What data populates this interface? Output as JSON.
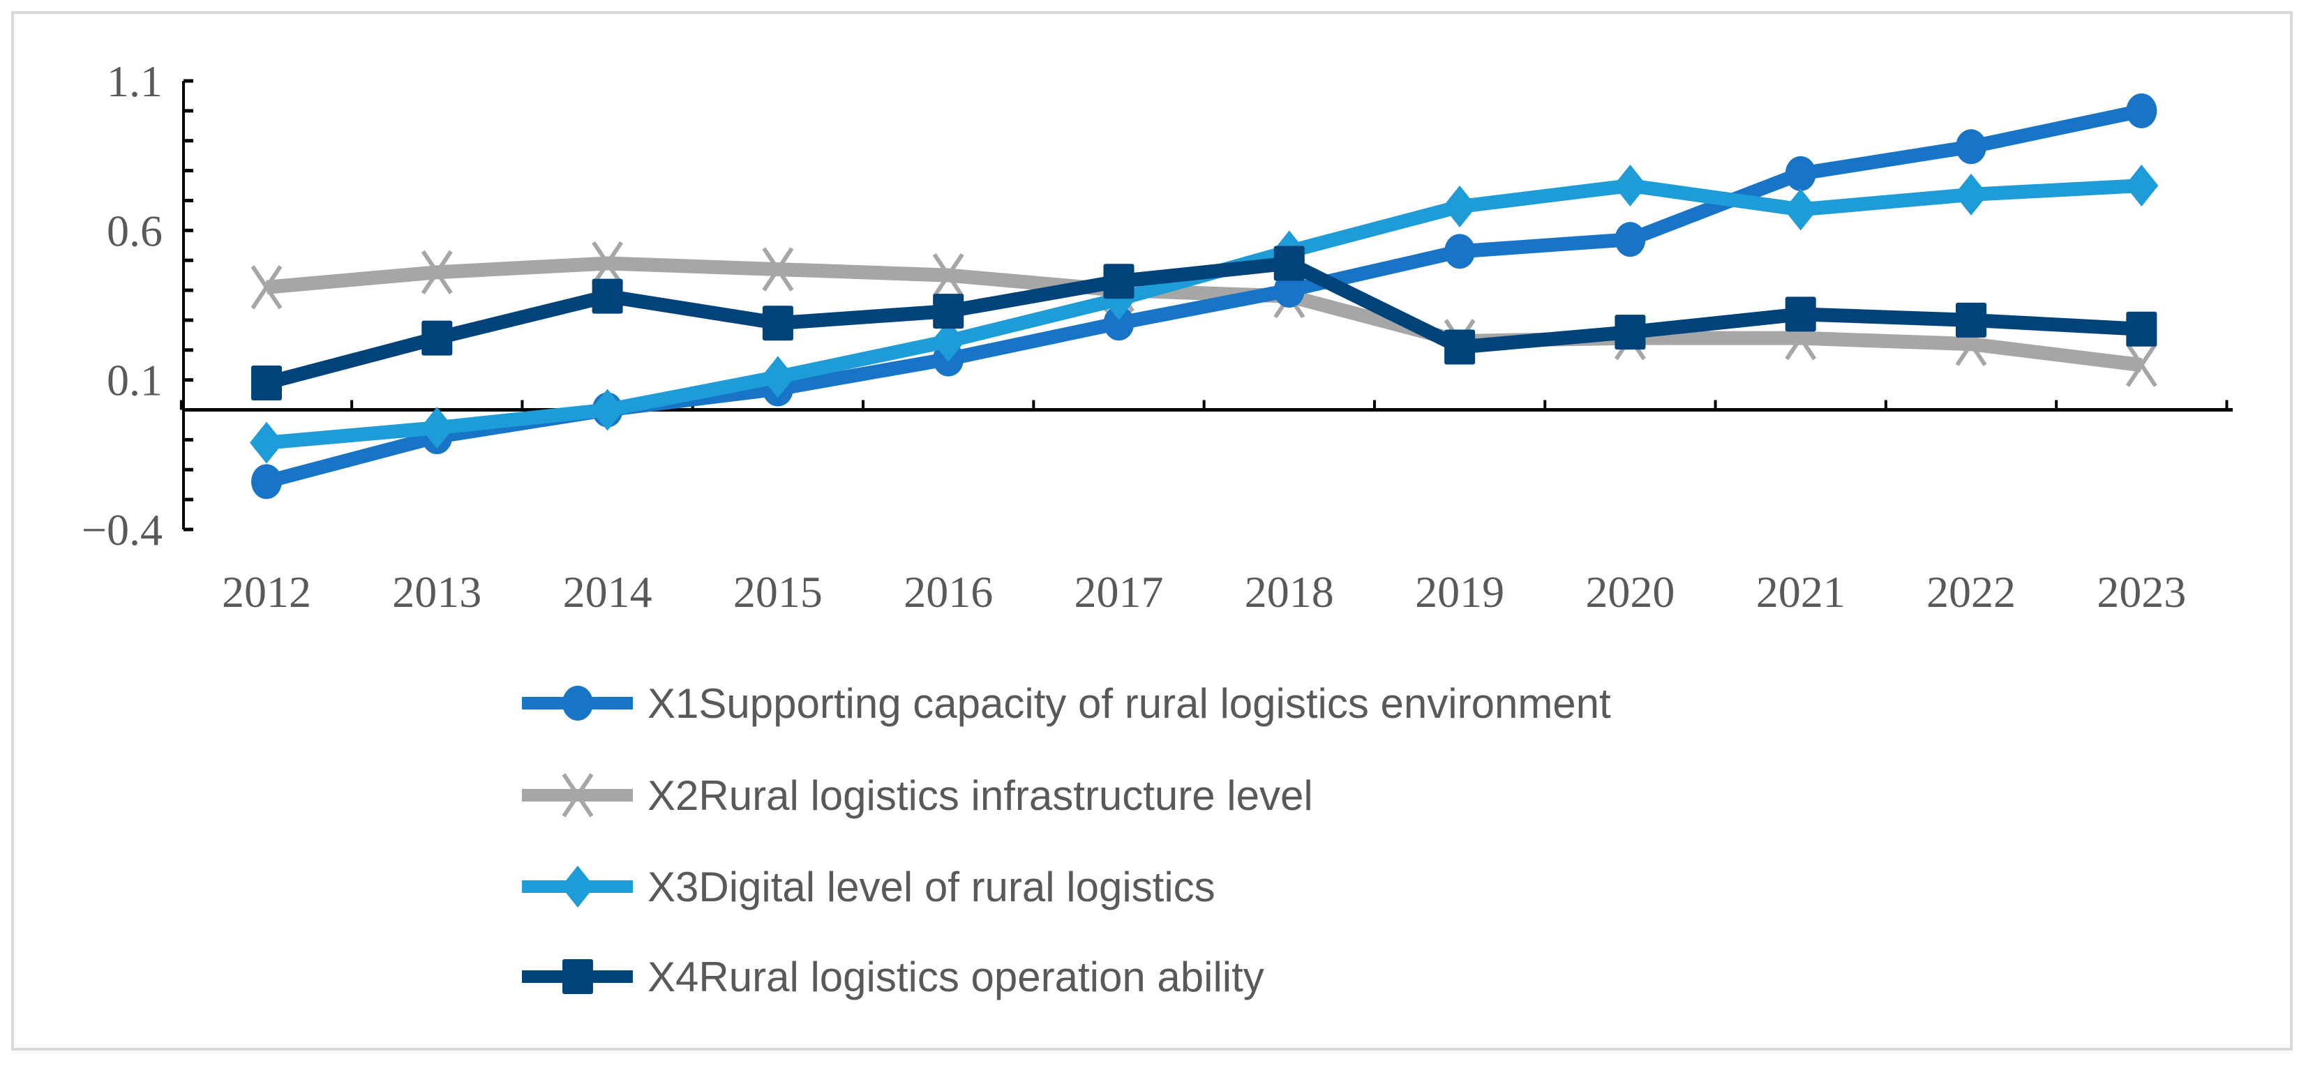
{
  "chart_data": {
    "type": "line",
    "title": "",
    "xlabel": "",
    "ylabel": "",
    "categories": [
      "2012",
      "2013",
      "2014",
      "2015",
      "2016",
      "2017",
      "2018",
      "2019",
      "2020",
      "2021",
      "2022",
      "2023"
    ],
    "ylim": [
      -0.4,
      1.1
    ],
    "yticks": [
      "1.1",
      "0.6",
      "0.1",
      "−0.4"
    ],
    "ytick_values": [
      1.1,
      0.6,
      0.1,
      -0.4
    ],
    "minor_tick_step": 0.1,
    "grid": false,
    "legend_position": "bottom",
    "series": [
      {
        "name": "X1Supporting capacity of rural logistics environment",
        "color": "#1874C6",
        "marker": "circle",
        "values": [
          -0.24,
          -0.09,
          0.0,
          0.07,
          0.17,
          0.29,
          0.4,
          0.53,
          0.57,
          0.79,
          0.88,
          1.0
        ]
      },
      {
        "name": "X2Rural logistics infrastructure level",
        "color": "#A6A6A6",
        "marker": "x",
        "values": [
          0.41,
          0.46,
          0.49,
          0.47,
          0.45,
          0.4,
          0.38,
          0.23,
          0.24,
          0.24,
          0.22,
          0.15
        ]
      },
      {
        "name": "X3Digital level of rural logistics",
        "color": "#1E9CD8",
        "marker": "diamond",
        "values": [
          -0.11,
          -0.06,
          0.0,
          0.11,
          0.23,
          0.37,
          0.53,
          0.68,
          0.75,
          0.67,
          0.72,
          0.75
        ]
      },
      {
        "name": "X4Rural logistics operation ability",
        "color": "#00437A",
        "marker": "square",
        "values": [
          0.09,
          0.24,
          0.38,
          0.29,
          0.33,
          0.43,
          0.49,
          0.21,
          0.26,
          0.32,
          0.3,
          0.27
        ]
      }
    ]
  }
}
